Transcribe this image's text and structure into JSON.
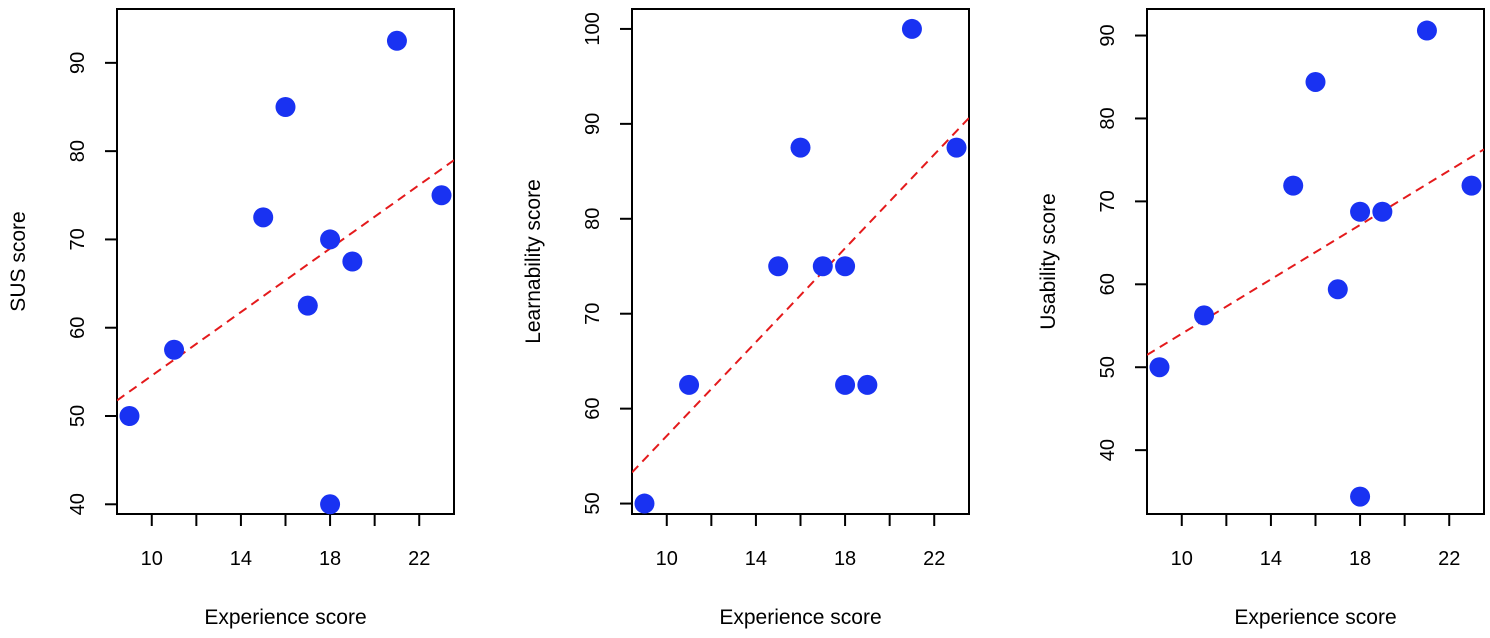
{
  "colors": {
    "points": "#1932f2",
    "fit_line": "#e41a1c",
    "axis": "#000000"
  },
  "chart_data": [
    {
      "type": "scatter",
      "xlabel": "Experience score",
      "ylabel": "SUS score",
      "xlim": [
        8.44,
        23.56
      ],
      "ylim": [
        38.9,
        96.1
      ],
      "xticks": [
        10,
        12,
        14,
        16,
        18,
        20,
        22
      ],
      "xtick_labels": [
        "10",
        "",
        "14",
        "",
        "18",
        "",
        "22"
      ],
      "yticks": [
        40,
        50,
        60,
        70,
        80,
        90
      ],
      "ytick_labels": [
        "40",
        "50",
        "60",
        "70",
        "80",
        "90"
      ],
      "points": [
        {
          "x": 9,
          "y": 50
        },
        {
          "x": 11,
          "y": 57.5
        },
        {
          "x": 15,
          "y": 72.5
        },
        {
          "x": 16,
          "y": 85
        },
        {
          "x": 17,
          "y": 62.5
        },
        {
          "x": 18,
          "y": 70
        },
        {
          "x": 18,
          "y": 40
        },
        {
          "x": 19,
          "y": 67.5
        },
        {
          "x": 21,
          "y": 92.5
        },
        {
          "x": 23,
          "y": 75
        }
      ],
      "fit_line": {
        "intercept": 36.57,
        "slope": 1.8,
        "style": "dashed"
      }
    },
    {
      "type": "scatter",
      "xlabel": "Experience score",
      "ylabel": "Learnability score",
      "xlim": [
        8.44,
        23.56
      ],
      "ylim": [
        48.9,
        102.1
      ],
      "xticks": [
        10,
        12,
        14,
        16,
        18,
        20,
        22
      ],
      "xtick_labels": [
        "10",
        "",
        "14",
        "",
        "18",
        "",
        "22"
      ],
      "yticks": [
        50,
        60,
        70,
        80,
        90,
        100
      ],
      "ytick_labels": [
        "50",
        "60",
        "70",
        "80",
        "90",
        "100"
      ],
      "points": [
        {
          "x": 9,
          "y": 50
        },
        {
          "x": 11,
          "y": 62.5
        },
        {
          "x": 15,
          "y": 75
        },
        {
          "x": 16,
          "y": 87.5
        },
        {
          "x": 17,
          "y": 75
        },
        {
          "x": 18,
          "y": 75
        },
        {
          "x": 18,
          "y": 62.5
        },
        {
          "x": 19,
          "y": 62.5
        },
        {
          "x": 21,
          "y": 100
        },
        {
          "x": 23,
          "y": 87.5
        }
      ],
      "fit_line": {
        "intercept": 32.43,
        "slope": 2.47,
        "style": "dashed"
      }
    },
    {
      "type": "scatter",
      "xlabel": "Experience score",
      "ylabel": "Usability score",
      "xlim": [
        8.44,
        23.56
      ],
      "ylim": [
        32.3,
        93.2
      ],
      "xticks": [
        10,
        12,
        14,
        16,
        18,
        20,
        22
      ],
      "xtick_labels": [
        "10",
        "",
        "14",
        "",
        "18",
        "",
        "22"
      ],
      "yticks": [
        40,
        50,
        60,
        70,
        80,
        90
      ],
      "ytick_labels": [
        "40",
        "50",
        "60",
        "70",
        "80",
        "90"
      ],
      "points": [
        {
          "x": 9,
          "y": 50
        },
        {
          "x": 11,
          "y": 56.25
        },
        {
          "x": 15,
          "y": 71.9
        },
        {
          "x": 16,
          "y": 84.4
        },
        {
          "x": 17,
          "y": 59.4
        },
        {
          "x": 18,
          "y": 68.75
        },
        {
          "x": 18,
          "y": 34.4
        },
        {
          "x": 19,
          "y": 68.75
        },
        {
          "x": 21,
          "y": 90.6
        },
        {
          "x": 23,
          "y": 71.9
        }
      ],
      "fit_line": {
        "intercept": 37.64,
        "slope": 1.64,
        "style": "dashed"
      }
    }
  ]
}
